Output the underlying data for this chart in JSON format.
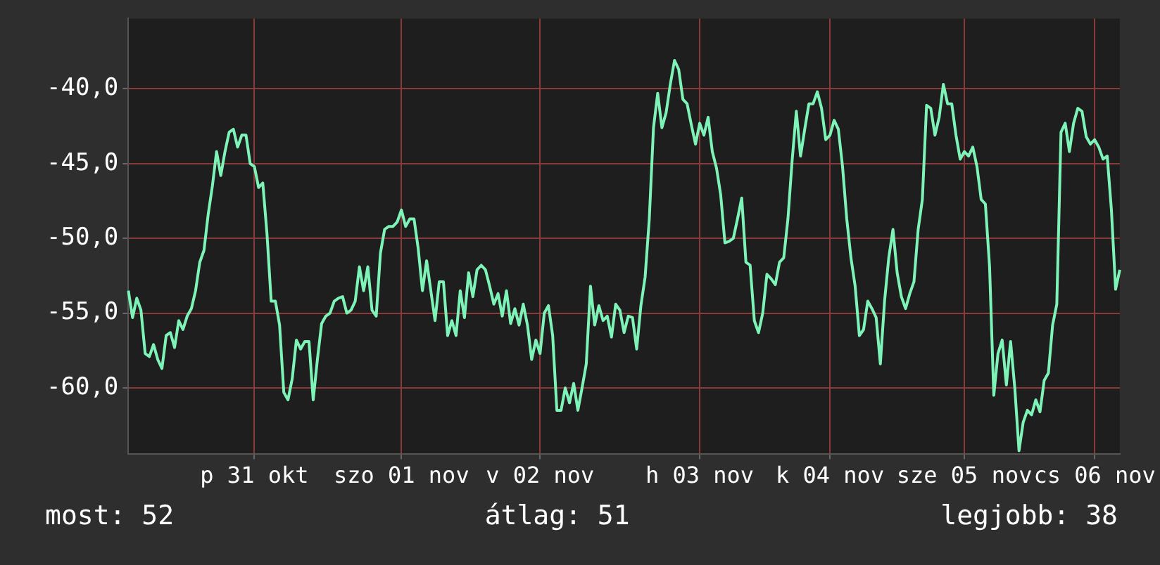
{
  "chart_data": {
    "type": "line",
    "categories": [
      null,
      null,
      null,
      null,
      null,
      null,
      null,
      null,
      null,
      null,
      null,
      null,
      null,
      null,
      null,
      null,
      null,
      null,
      null,
      null,
      null,
      null,
      null,
      null,
      null,
      null,
      null,
      null,
      null,
      null,
      "p 31 okt",
      null,
      null,
      null,
      null,
      null,
      null,
      null,
      null,
      null,
      null,
      null,
      null,
      null,
      null,
      null,
      null,
      null,
      null,
      null,
      null,
      null,
      null,
      null,
      null,
      null,
      null,
      null,
      null,
      null,
      null,
      null,
      null,
      null,
      null,
      "szo 01 nov",
      null,
      null,
      null,
      null,
      null,
      null,
      null,
      null,
      null,
      null,
      null,
      null,
      null,
      null,
      null,
      null,
      null,
      null,
      null,
      null,
      null,
      null,
      null,
      null,
      null,
      null,
      null,
      null,
      null,
      null,
      null,
      null,
      "v 02 nov",
      null,
      null,
      null,
      null,
      null,
      null,
      null,
      null,
      null,
      null,
      null,
      null,
      null,
      null,
      null,
      null,
      null,
      null,
      null,
      null,
      null,
      null,
      null,
      null,
      null,
      null,
      null,
      null,
      null,
      null,
      null,
      null,
      null,
      null,
      null,
      null,
      null,
      "h 03 nov",
      null,
      null,
      null,
      null,
      null,
      null,
      null,
      null,
      null,
      null,
      null,
      null,
      null,
      null,
      null,
      null,
      null,
      null,
      null,
      null,
      null,
      null,
      null,
      null,
      null,
      null,
      null,
      null,
      null,
      null,
      "k 04 nov",
      null,
      null,
      null,
      null,
      null,
      null,
      null,
      null,
      null,
      null,
      null,
      null,
      null,
      null,
      null,
      null,
      null,
      null,
      null,
      null,
      null,
      null,
      null,
      null,
      null,
      null,
      null,
      null,
      null,
      null,
      null,
      "sze 05 nov",
      null,
      null,
      null,
      null,
      null,
      null,
      null,
      null,
      null,
      null,
      null,
      null,
      null,
      null,
      null,
      null,
      null,
      null,
      null,
      null,
      null,
      null,
      null,
      null,
      null,
      null,
      null,
      null,
      null,
      null,
      "cs 06 nov",
      null,
      null,
      null,
      null,
      null,
      null
    ],
    "series": [
      {
        "color": "#7ef3b8",
        "values": [
          -53.5,
          -55.3,
          -54.0,
          -54.8,
          -57.7,
          -57.9,
          -57.1,
          -58.1,
          -58.7,
          -56.5,
          -56.3,
          -57.3,
          -55.5,
          -56.1,
          -55.2,
          -54.7,
          -53.5,
          -51.6,
          -50.8,
          -48.4,
          -46.5,
          -44.2,
          -45.8,
          -44.2,
          -42.9,
          -42.7,
          -43.9,
          -43.1,
          -43.1,
          -45.0,
          -45.2,
          -46.6,
          -46.3,
          -49.7,
          -54.2,
          -54.2,
          -55.8,
          -60.3,
          -60.8,
          -59.4,
          -56.8,
          -57.4,
          -56.9,
          -56.9,
          -60.8,
          -58.1,
          -55.7,
          -55.2,
          -55.0,
          -54.2,
          -54.0,
          -53.9,
          -55.0,
          -54.8,
          -54.2,
          -51.9,
          -53.5,
          -51.9,
          -54.8,
          -55.2,
          -51.0,
          -49.4,
          -49.2,
          -49.2,
          -48.9,
          -48.1,
          -49.2,
          -48.7,
          -48.7,
          -50.7,
          -53.5,
          -51.5,
          -53.5,
          -55.5,
          -52.9,
          -52.9,
          -56.5,
          -55.5,
          -56.5,
          -53.5,
          -55.3,
          -52.3,
          -53.9,
          -52.1,
          -51.8,
          -52.1,
          -53.2,
          -54.4,
          -53.7,
          -55.2,
          -53.5,
          -55.7,
          -54.7,
          -55.8,
          -54.4,
          -55.8,
          -58.1,
          -56.8,
          -57.7,
          -55.0,
          -54.5,
          -56.5,
          -61.5,
          -61.5,
          -60.0,
          -61.0,
          -59.7,
          -61.5,
          -60.0,
          -58.4,
          -53.2,
          -55.8,
          -54.5,
          -55.5,
          -55.2,
          -56.6,
          -54.4,
          -54.8,
          -56.3,
          -55.2,
          -55.3,
          -57.4,
          -54.5,
          -52.6,
          -48.7,
          -42.6,
          -40.3,
          -42.6,
          -41.6,
          -39.7,
          -38.1,
          -38.7,
          -40.7,
          -41.0,
          -42.4,
          -43.7,
          -42.3,
          -43.1,
          -41.9,
          -44.2,
          -45.3,
          -47.1,
          -50.3,
          -50.2,
          -50.0,
          -48.7,
          -47.3,
          -51.6,
          -51.8,
          -55.5,
          -56.3,
          -55.0,
          -52.4,
          -52.7,
          -53.1,
          -51.6,
          -51.3,
          -48.7,
          -44.8,
          -41.5,
          -44.5,
          -42.7,
          -41.0,
          -41.0,
          -40.2,
          -41.3,
          -43.4,
          -43.1,
          -42.1,
          -42.7,
          -45.2,
          -48.7,
          -51.3,
          -53.2,
          -56.5,
          -56.1,
          -54.2,
          -54.7,
          -55.3,
          -58.4,
          -54.2,
          -51.3,
          -49.4,
          -52.3,
          -53.9,
          -54.7,
          -53.7,
          -52.9,
          -49.4,
          -47.4,
          -41.1,
          -41.3,
          -43.1,
          -41.9,
          -39.7,
          -41.0,
          -41.0,
          -43.1,
          -44.7,
          -44.2,
          -44.5,
          -43.9,
          -45.2,
          -47.4,
          -47.7,
          -51.9,
          -60.5,
          -57.7,
          -56.8,
          -59.8,
          -56.9,
          -60.0,
          -64.2,
          -62.3,
          -61.5,
          -61.8,
          -60.8,
          -61.6,
          -59.5,
          -59.0,
          -55.8,
          -54.4,
          -42.9,
          -42.3,
          -44.2,
          -42.3,
          -41.3,
          -41.5,
          -43.2,
          -43.7,
          -43.4,
          -43.9,
          -44.7,
          -44.5,
          -48.1,
          -53.4,
          -52.1
        ]
      }
    ],
    "ylim": [
      -64.4,
      -35.3
    ],
    "yticks": [
      {
        "value": -40,
        "label": "-40,0"
      },
      {
        "value": -45,
        "label": "-45,0"
      },
      {
        "value": -50,
        "label": "-50,0"
      },
      {
        "value": -55,
        "label": "-55,0"
      },
      {
        "value": -60,
        "label": "-60,0"
      }
    ],
    "grid": true,
    "marker": "none",
    "line_style": "solid",
    "annotations": [
      "most: 52",
      "átlag: 51",
      "legjobb: 38"
    ]
  }
}
